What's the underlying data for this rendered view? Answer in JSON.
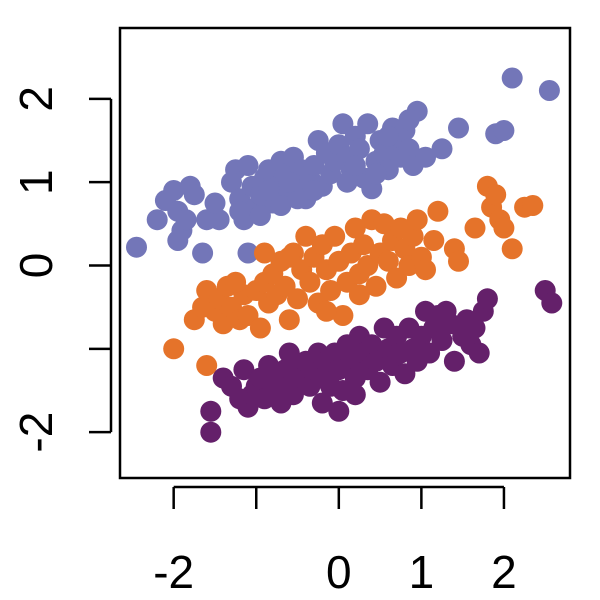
{
  "chart_data": {
    "type": "scatter",
    "title": "",
    "xlabel": "",
    "ylabel": "",
    "xlim": [
      -2.65,
      2.8
    ],
    "ylim": [
      -2.55,
      2.85
    ],
    "x_ticks": [
      -2,
      -1,
      0,
      1,
      2
    ],
    "x_tick_labels": [
      "-2",
      "",
      "0",
      "1",
      "2"
    ],
    "y_ticks": [
      -2,
      -1,
      0,
      1,
      2
    ],
    "y_tick_labels": [
      "-2",
      "",
      "0",
      "1",
      "2"
    ],
    "grid": false,
    "legend": "none",
    "series": [
      {
        "color": "#7376b8",
        "points": [
          [
            -2.45,
            0.22
          ],
          [
            -2.2,
            0.55
          ],
          [
            -2.1,
            0.78
          ],
          [
            -2.0,
            0.9
          ],
          [
            -1.95,
            0.65
          ],
          [
            -1.9,
            0.42
          ],
          [
            -1.95,
            0.3
          ],
          [
            -1.85,
            0.55
          ],
          [
            -1.8,
            0.95
          ],
          [
            -1.75,
            0.85
          ],
          [
            -1.65,
            0.15
          ],
          [
            -1.45,
            0.55
          ],
          [
            -1.25,
            1.15
          ],
          [
            -1.3,
            1.0
          ],
          [
            -1.2,
            0.8
          ],
          [
            -1.15,
            0.55
          ],
          [
            -1.1,
            0.15
          ],
          [
            -1.1,
            1.2
          ],
          [
            -1.05,
            0.95
          ],
          [
            -1.0,
            0.7
          ],
          [
            -0.95,
            0.85
          ],
          [
            -0.9,
            1.05
          ],
          [
            -0.85,
            1.15
          ],
          [
            -0.8,
            0.75
          ],
          [
            -0.75,
            0.95
          ],
          [
            -0.7,
            1.25
          ],
          [
            -0.65,
            1.1
          ],
          [
            -0.6,
            0.88
          ],
          [
            -0.55,
            1.3
          ],
          [
            -0.5,
            0.95
          ],
          [
            -0.45,
            1.15
          ],
          [
            -0.4,
            0.8
          ],
          [
            -0.35,
            1.05
          ],
          [
            -0.3,
            1.2
          ],
          [
            -0.25,
            1.5
          ],
          [
            -0.2,
            0.95
          ],
          [
            -0.15,
            1.35
          ],
          [
            -0.1,
            1.1
          ],
          [
            -0.05,
            1.25
          ],
          [
            0.0,
            1.45
          ],
          [
            0.05,
            1.7
          ],
          [
            0.1,
            1.3
          ],
          [
            0.15,
            1.15
          ],
          [
            0.2,
            1.55
          ],
          [
            0.25,
            1.4
          ],
          [
            0.3,
            1.05
          ],
          [
            0.35,
            1.7
          ],
          [
            0.4,
            0.92
          ],
          [
            0.45,
            1.25
          ],
          [
            0.5,
            1.5
          ],
          [
            0.55,
            1.35
          ],
          [
            0.6,
            1.15
          ],
          [
            0.65,
            1.65
          ],
          [
            0.7,
            1.45
          ],
          [
            0.75,
            1.3
          ],
          [
            0.8,
            1.62
          ],
          [
            0.85,
            1.4
          ],
          [
            0.9,
            1.2
          ],
          [
            0.95,
            1.85
          ],
          [
            1.05,
            1.3
          ],
          [
            1.25,
            1.4
          ],
          [
            1.45,
            1.65
          ],
          [
            1.9,
            1.58
          ],
          [
            2.0,
            1.62
          ],
          [
            2.1,
            2.25
          ],
          [
            2.55,
            2.1
          ],
          [
            -1.6,
            0.55
          ],
          [
            -1.5,
            0.75
          ],
          [
            -1.2,
            0.65
          ],
          [
            -0.95,
            0.6
          ],
          [
            -0.7,
            0.72
          ],
          [
            -0.5,
            0.8
          ],
          [
            0.1,
            1.0
          ],
          [
            0.6,
            1.55
          ],
          [
            0.85,
            1.75
          ],
          [
            0.2,
            1.2
          ],
          [
            -0.3,
            0.9
          ],
          [
            -0.85,
            0.9
          ],
          [
            -0.6,
            1.0
          ],
          [
            0.45,
            1.1
          ]
        ]
      },
      {
        "color": "#e5732a",
        "points": [
          [
            -2.0,
            -1.0
          ],
          [
            -1.75,
            -0.65
          ],
          [
            -1.65,
            -0.5
          ],
          [
            -1.6,
            -0.3
          ],
          [
            -1.5,
            -0.55
          ],
          [
            -1.45,
            -0.4
          ],
          [
            -1.4,
            -0.7
          ],
          [
            -1.35,
            -0.25
          ],
          [
            -1.3,
            -0.5
          ],
          [
            -1.2,
            -0.65
          ],
          [
            -1.15,
            -0.35
          ],
          [
            -1.1,
            -0.6
          ],
          [
            -1.0,
            -0.3
          ],
          [
            -0.95,
            -0.75
          ],
          [
            -0.9,
            -0.2
          ],
          [
            -0.9,
            0.15
          ],
          [
            -0.85,
            -0.45
          ],
          [
            -0.8,
            -0.1
          ],
          [
            -0.75,
            -0.35
          ],
          [
            -0.7,
            0.05
          ],
          [
            -0.65,
            -0.25
          ],
          [
            -0.6,
            -0.65
          ],
          [
            -0.55,
            0.15
          ],
          [
            -0.5,
            -0.4
          ],
          [
            -0.45,
            -0.05
          ],
          [
            -0.4,
            0.35
          ],
          [
            -0.35,
            -0.2
          ],
          [
            -0.3,
            0.1
          ],
          [
            -0.25,
            -0.45
          ],
          [
            -0.2,
            0.25
          ],
          [
            -0.15,
            -0.05
          ],
          [
            -0.1,
            -0.3
          ],
          [
            -0.05,
            0.35
          ],
          [
            0.0,
            0.05
          ],
          [
            0.05,
            -0.6
          ],
          [
            0.1,
            -0.2
          ],
          [
            0.15,
            0.15
          ],
          [
            0.2,
            0.45
          ],
          [
            0.25,
            -0.1
          ],
          [
            0.3,
            0.25
          ],
          [
            0.35,
            0.0
          ],
          [
            0.4,
            0.55
          ],
          [
            0.45,
            -0.25
          ],
          [
            0.5,
            0.15
          ],
          [
            0.55,
            0.5
          ],
          [
            0.6,
            0.05
          ],
          [
            0.65,
            0.3
          ],
          [
            0.7,
            -0.15
          ],
          [
            0.75,
            0.45
          ],
          [
            0.8,
            0.2
          ],
          [
            0.85,
            0.0
          ],
          [
            0.9,
            0.35
          ],
          [
            1.0,
            0.1
          ],
          [
            1.05,
            -0.05
          ],
          [
            1.15,
            0.3
          ],
          [
            1.2,
            0.65
          ],
          [
            1.4,
            0.2
          ],
          [
            1.45,
            0.05
          ],
          [
            1.65,
            0.45
          ],
          [
            1.8,
            0.95
          ],
          [
            1.85,
            0.7
          ],
          [
            1.9,
            0.85
          ],
          [
            1.95,
            0.55
          ],
          [
            2.0,
            0.45
          ],
          [
            2.1,
            0.2
          ],
          [
            2.25,
            0.7
          ],
          [
            2.35,
            0.72
          ],
          [
            -1.6,
            -1.2
          ],
          [
            -0.15,
            -0.55
          ],
          [
            0.25,
            -0.35
          ],
          [
            -1.25,
            -0.2
          ],
          [
            -0.6,
            0.1
          ],
          [
            0.95,
            0.55
          ]
        ]
      },
      {
        "color": "#64206a",
        "points": [
          [
            -1.55,
            -1.75
          ],
          [
            -1.55,
            -2.0
          ],
          [
            -1.4,
            -1.35
          ],
          [
            -1.3,
            -1.45
          ],
          [
            -1.2,
            -1.6
          ],
          [
            -1.15,
            -1.25
          ],
          [
            -1.1,
            -1.7
          ],
          [
            -1.05,
            -1.55
          ],
          [
            -1.0,
            -1.45
          ],
          [
            -0.95,
            -1.35
          ],
          [
            -0.9,
            -1.6
          ],
          [
            -0.85,
            -1.2
          ],
          [
            -0.8,
            -1.5
          ],
          [
            -0.75,
            -1.35
          ],
          [
            -0.7,
            -1.65
          ],
          [
            -0.65,
            -1.25
          ],
          [
            -0.6,
            -1.45
          ],
          [
            -0.55,
            -1.55
          ],
          [
            -0.5,
            -1.2
          ],
          [
            -0.45,
            -1.35
          ],
          [
            -0.4,
            -1.15
          ],
          [
            -0.35,
            -1.45
          ],
          [
            -0.3,
            -1.25
          ],
          [
            -0.25,
            -1.05
          ],
          [
            -0.2,
            -1.35
          ],
          [
            -0.2,
            -1.65
          ],
          [
            -0.15,
            -1.15
          ],
          [
            -0.1,
            -1.45
          ],
          [
            -0.05,
            -1.05
          ],
          [
            0.0,
            -1.25
          ],
          [
            0.0,
            -1.75
          ],
          [
            0.05,
            -1.5
          ],
          [
            0.1,
            -0.95
          ],
          [
            0.15,
            -1.15
          ],
          [
            0.2,
            -1.35
          ],
          [
            0.25,
            -0.85
          ],
          [
            0.3,
            -1.05
          ],
          [
            0.35,
            -1.25
          ],
          [
            0.4,
            -0.95
          ],
          [
            0.45,
            -1.15
          ],
          [
            0.5,
            -1.4
          ],
          [
            0.55,
            -0.75
          ],
          [
            0.6,
            -1.0
          ],
          [
            0.65,
            -1.2
          ],
          [
            0.7,
            -0.85
          ],
          [
            0.75,
            -1.05
          ],
          [
            0.8,
            -1.3
          ],
          [
            0.85,
            -0.75
          ],
          [
            0.9,
            -1.0
          ],
          [
            0.95,
            -1.15
          ],
          [
            1.0,
            -0.85
          ],
          [
            1.05,
            -0.55
          ],
          [
            1.1,
            -1.05
          ],
          [
            1.15,
            -0.75
          ],
          [
            1.25,
            -0.9
          ],
          [
            1.3,
            -0.55
          ],
          [
            1.35,
            -0.7
          ],
          [
            1.4,
            -1.15
          ],
          [
            1.5,
            -0.85
          ],
          [
            1.55,
            -0.65
          ],
          [
            1.6,
            -0.95
          ],
          [
            1.65,
            -0.75
          ],
          [
            1.7,
            -1.05
          ],
          [
            1.75,
            -0.55
          ],
          [
            1.8,
            -0.4
          ],
          [
            2.5,
            -0.3
          ],
          [
            2.58,
            -0.45
          ],
          [
            -0.6,
            -1.05
          ],
          [
            0.2,
            -1.55
          ],
          [
            1.2,
            -0.6
          ]
        ]
      }
    ]
  }
}
